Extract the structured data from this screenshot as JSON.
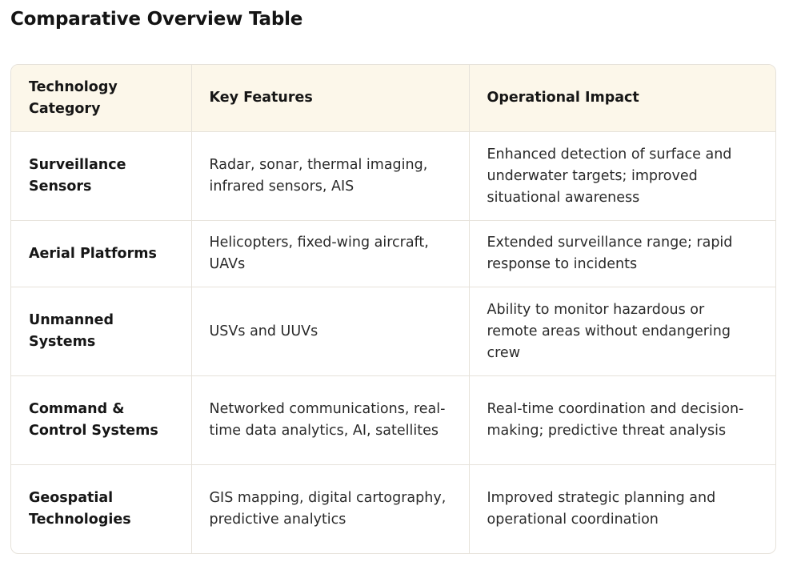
{
  "page": {
    "title": "Comparative Overview Table"
  },
  "table": {
    "headers": [
      "Technology Category",
      "Key Features",
      "Operational Impact"
    ],
    "rows": [
      {
        "category": "Surveillance Sensors",
        "features": "Radar, sonar, thermal imaging, infrared sensors, AIS",
        "impact": "Enhanced detection of surface and underwater targets; improved situational awareness"
      },
      {
        "category": "Aerial Platforms",
        "features": "Helicopters, fixed-wing aircraft, UAVs",
        "impact": "Extended surveillance range; rapid response to incidents"
      },
      {
        "category": "Unmanned Systems",
        "features": "USVs and UUVs",
        "impact": "Ability to monitor hazardous or remote areas without endangering crew"
      },
      {
        "category": "Command & Control Systems",
        "features": "Networked communications, real-time data analytics, AI, satellites",
        "impact": "Real-time coordination and decision-making; predictive threat analysis"
      },
      {
        "category": "Geospatial Technologies",
        "features": "GIS mapping, digital cartography, predictive analytics",
        "impact": "Improved strategic planning and operational coordination"
      }
    ]
  },
  "colors": {
    "header_background": "#fcf7ea",
    "border": "#e6e2da",
    "text": "#1a1a1a"
  }
}
